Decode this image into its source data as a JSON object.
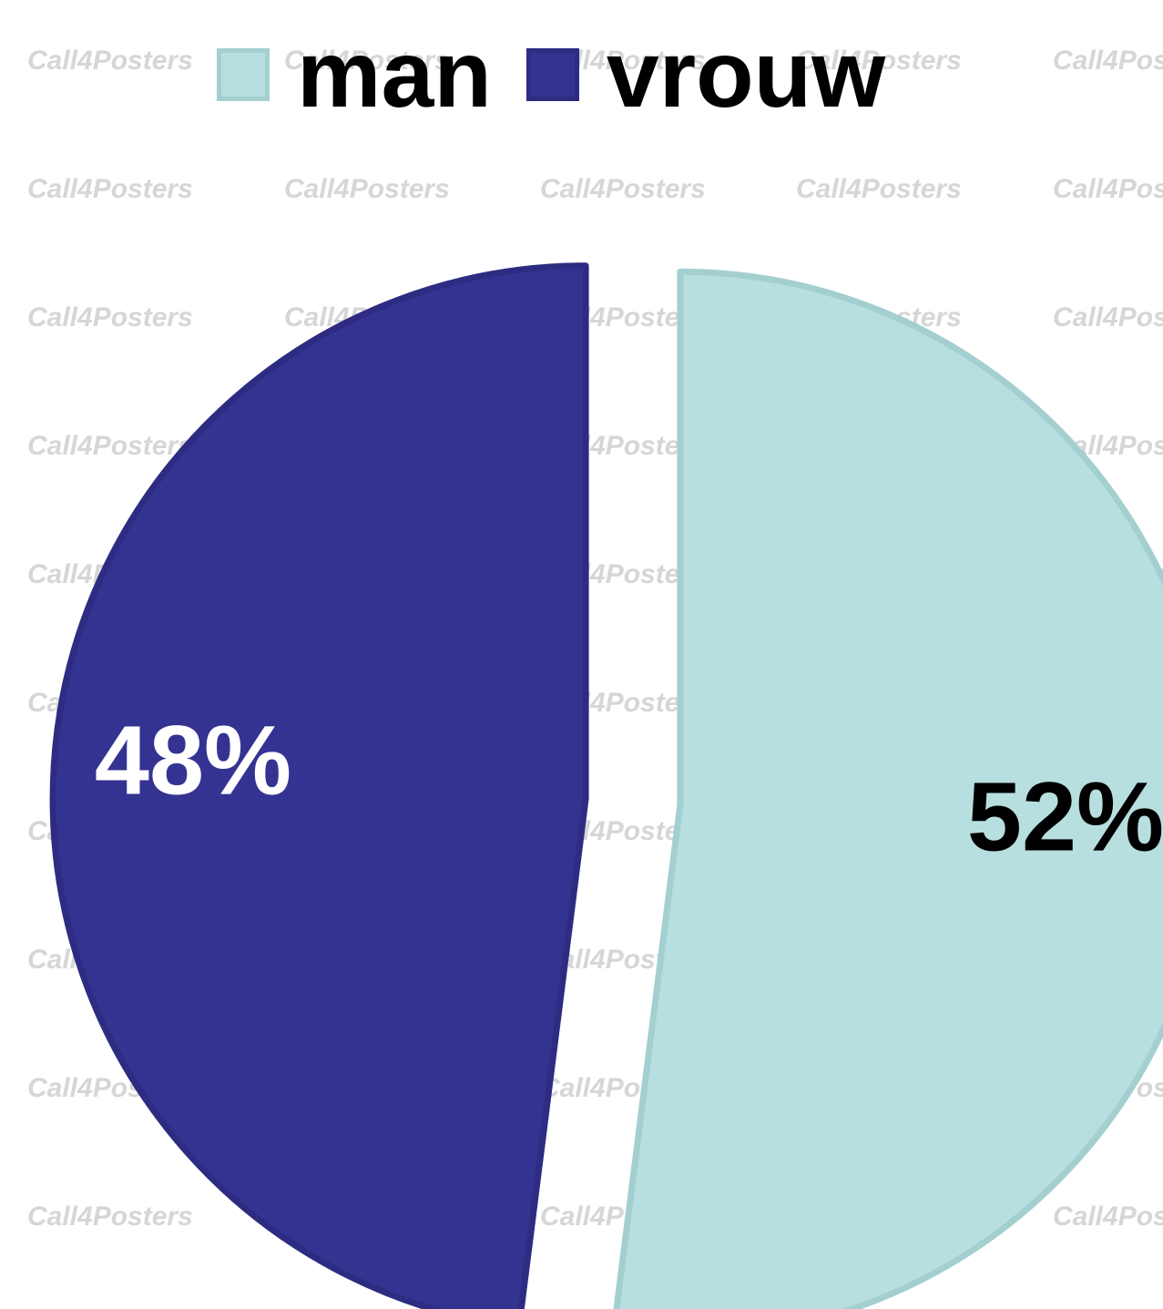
{
  "watermark": {
    "text": "Call4Posters"
  },
  "chart_data": {
    "type": "pie",
    "title": "",
    "legend_position": "top",
    "slices": [
      {
        "name": "man",
        "value": 52,
        "label": "52%",
        "color": "#b8dfe0",
        "edge": "#a4cfd0",
        "label_color": "#000000"
      },
      {
        "name": "vrouw",
        "value": 48,
        "label": "48%",
        "color": "#343392",
        "edge": "#2d2c82",
        "label_color": "#ffffff"
      }
    ]
  }
}
